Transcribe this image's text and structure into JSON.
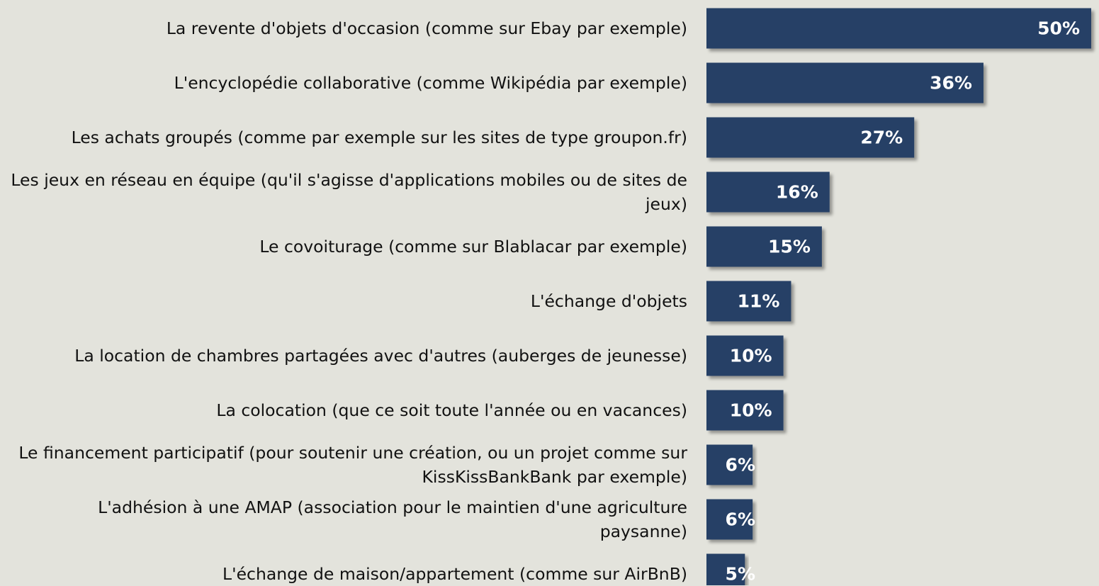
{
  "chart_data": {
    "type": "bar",
    "orientation": "horizontal",
    "categories": [
      "La revente d'objets d'occasion (comme sur Ebay par exemple)",
      "L'encyclopédie collaborative (comme Wikipédia par exemple)",
      "Les achats groupés (comme par exemple sur les sites de type groupon.fr)",
      "Les jeux en réseau en équipe (qu'il s'agisse d'applications mobiles ou de sites de jeux)",
      "Le covoiturage (comme sur Blablacar par exemple)",
      "L'échange d'objets",
      "La location de chambres partagées avec d'autres (auberges de jeunesse)",
      "La colocation (que ce soit toute l'année ou en vacances)",
      "Le financement participatif (pour soutenir une création, ou un projet comme sur KissKissBankBank par exemple)",
      "L'adhésion à une AMAP (association pour le maintien d'une agriculture paysanne)",
      "L'échange de maison/appartement (comme sur AirBnB)"
    ],
    "values": [
      50,
      36,
      27,
      16,
      15,
      11,
      10,
      10,
      6,
      6,
      5
    ],
    "value_labels": [
      "50%",
      "36%",
      "27%",
      "16%",
      "15%",
      "11%",
      "10%",
      "10%",
      "6%",
      "6%",
      "5%"
    ],
    "color": "#253f66"
  }
}
